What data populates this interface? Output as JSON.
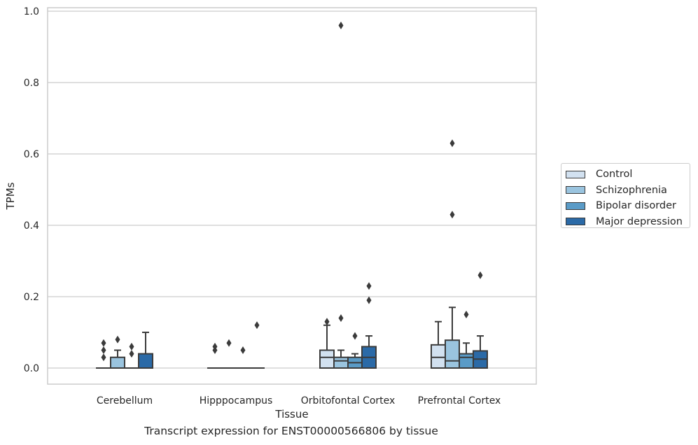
{
  "chart_data": {
    "type": "boxplot",
    "xlabel": "Tissue",
    "ylabel": "TPMs",
    "ylim": [
      -0.045,
      1.01
    ],
    "yticks": [
      0.0,
      0.2,
      0.4,
      0.6,
      0.8,
      1.0
    ],
    "ytick_labels": [
      "0.0",
      "0.2",
      "0.4",
      "0.6",
      "0.8",
      "1.0"
    ],
    "grid": true,
    "legend_position": "right",
    "categories": [
      "Cerebellum",
      "Hipppocampus",
      "Orbitofontal Cortex",
      "Prefrontal Cortex"
    ],
    "series": [
      {
        "name": "Control",
        "color": "#d2e1f0",
        "boxes": [
          {
            "q1": 0,
            "median": 0,
            "q3": 0,
            "whisker_low": 0,
            "whisker_high": 0,
            "outliers": [
              0.03,
              0.05,
              0.07
            ]
          },
          {
            "q1": 0,
            "median": 0,
            "q3": 0,
            "whisker_low": 0,
            "whisker_high": 0,
            "outliers": [
              0.05,
              0.06
            ]
          },
          {
            "q1": 0,
            "median": 0.03,
            "q3": 0.05,
            "whisker_low": 0,
            "whisker_high": 0.12,
            "outliers": [
              0.13
            ]
          },
          {
            "q1": 0,
            "median": 0.03,
            "q3": 0.065,
            "whisker_low": 0,
            "whisker_high": 0.13,
            "outliers": []
          }
        ]
      },
      {
        "name": "Schizophrenia",
        "color": "#9ac4df",
        "boxes": [
          {
            "q1": 0,
            "median": 0,
            "q3": 0.03,
            "whisker_low": 0,
            "whisker_high": 0.05,
            "outliers": [
              0.08
            ]
          },
          {
            "q1": 0,
            "median": 0,
            "q3": 0,
            "whisker_low": 0,
            "whisker_high": 0,
            "outliers": [
              0.07
            ]
          },
          {
            "q1": 0,
            "median": 0.02,
            "q3": 0.03,
            "whisker_low": 0,
            "whisker_high": 0.05,
            "outliers": [
              0.14,
              0.96
            ]
          },
          {
            "q1": 0,
            "median": 0.02,
            "q3": 0.078,
            "whisker_low": 0,
            "whisker_high": 0.17,
            "outliers": [
              0.43,
              0.63
            ]
          }
        ]
      },
      {
        "name": "Bipolar disorder",
        "color": "#5a9bc7",
        "boxes": [
          {
            "q1": 0,
            "median": 0,
            "q3": 0,
            "whisker_low": 0,
            "whisker_high": 0,
            "outliers": [
              0.04,
              0.06
            ]
          },
          {
            "q1": 0,
            "median": 0,
            "q3": 0,
            "whisker_low": 0,
            "whisker_high": 0,
            "outliers": [
              0.05
            ]
          },
          {
            "q1": 0,
            "median": 0.015,
            "q3": 0.03,
            "whisker_low": 0,
            "whisker_high": 0.04,
            "outliers": [
              0.09
            ]
          },
          {
            "q1": 0,
            "median": 0.03,
            "q3": 0.04,
            "whisker_low": 0,
            "whisker_high": 0.07,
            "outliers": [
              0.15
            ]
          }
        ]
      },
      {
        "name": "Major depression",
        "color": "#2b6aa7",
        "boxes": [
          {
            "q1": 0,
            "median": 0,
            "q3": 0.04,
            "whisker_low": 0,
            "whisker_high": 0.1,
            "outliers": []
          },
          {
            "q1": 0,
            "median": 0,
            "q3": 0,
            "whisker_low": 0,
            "whisker_high": 0,
            "outliers": [
              0.12
            ]
          },
          {
            "q1": 0,
            "median": 0.03,
            "q3": 0.06,
            "whisker_low": 0,
            "whisker_high": 0.09,
            "outliers": [
              0.19,
              0.23
            ]
          },
          {
            "q1": 0,
            "median": 0.025,
            "q3": 0.048,
            "whisker_low": 0,
            "whisker_high": 0.09,
            "outliers": [
              0.26
            ]
          }
        ]
      }
    ],
    "caption": "Transcript expression for ENST00000566806 by tissue"
  }
}
